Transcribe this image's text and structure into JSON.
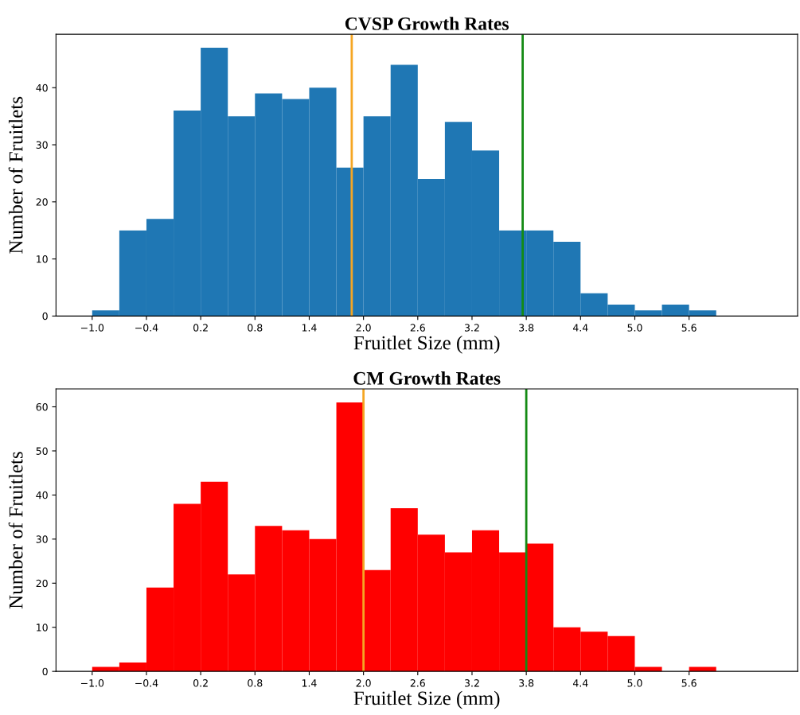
{
  "chart_data": [
    {
      "type": "histogram",
      "title": "CVSP Growth Rates",
      "xlabel": "Fruitlet Size (mm)",
      "ylabel": "Number of Fruitlets",
      "color": "#1f77b4",
      "bins": [
        -1.0,
        -0.7,
        -0.4,
        -0.1,
        0.2,
        0.5,
        0.8,
        1.1,
        1.4,
        1.7,
        2.0,
        2.3,
        2.6,
        2.9,
        3.2,
        3.5,
        3.8,
        4.1,
        4.4,
        4.7,
        5.0,
        5.3,
        5.6,
        5.9
      ],
      "values": [
        1,
        15,
        17,
        36,
        47,
        35,
        39,
        38,
        40,
        26,
        35,
        44,
        24,
        34,
        29,
        15,
        15,
        13,
        4,
        2,
        1,
        2,
        1
      ],
      "xlim": [
        -1.4,
        6.8
      ],
      "xticks": [
        {
          "value": -1.0,
          "label": "−1.0"
        },
        {
          "value": -0.4,
          "label": "−0.4"
        },
        0.2,
        0.8,
        1.4,
        {
          "value": 2.0,
          "label": "2.0"
        },
        2.6,
        3.2,
        3.8,
        4.4,
        {
          "value": 5.0,
          "label": "5.0"
        },
        5.6
      ],
      "ylim": [
        0,
        49.35
      ],
      "yticks": [
        0,
        10,
        20,
        30,
        40
      ],
      "grid": false,
      "ref_lines": [
        {
          "axis": "x",
          "value": 1.87,
          "color": "#f5a623"
        },
        {
          "axis": "x",
          "value": 3.76,
          "color": "#138a13"
        }
      ]
    },
    {
      "type": "histogram",
      "title": "CM Growth Rates",
      "xlabel": "Fruitlet Size (mm)",
      "ylabel": "Number of Fruitlets",
      "color": "#ff0000",
      "bins": [
        -1.0,
        -0.7,
        -0.4,
        -0.1,
        0.2,
        0.5,
        0.8,
        1.1,
        1.4,
        1.7,
        2.0,
        2.3,
        2.6,
        2.9,
        3.2,
        3.5,
        3.8,
        4.1,
        4.4,
        4.7,
        5.0,
        5.3,
        5.6,
        5.9
      ],
      "values": [
        1,
        2,
        19,
        38,
        43,
        22,
        33,
        32,
        30,
        61,
        23,
        37,
        31,
        27,
        32,
        27,
        29,
        10,
        9,
        8,
        1,
        0,
        1
      ],
      "xlim": [
        -1.4,
        6.8
      ],
      "xticks": [
        {
          "value": -1.0,
          "label": "−1.0"
        },
        {
          "value": -0.4,
          "label": "−0.4"
        },
        0.2,
        0.8,
        1.4,
        {
          "value": 2.0,
          "label": "2.0"
        },
        2.6,
        3.2,
        3.8,
        4.4,
        {
          "value": 5.0,
          "label": "5.0"
        },
        5.6
      ],
      "ylim": [
        0,
        64.05
      ],
      "yticks": [
        0,
        10,
        20,
        30,
        40,
        50,
        60
      ],
      "grid": false,
      "ref_lines": [
        {
          "axis": "x",
          "value": 2.0,
          "color": "#f5a623"
        },
        {
          "axis": "x",
          "value": 3.8,
          "color": "#138a13"
        }
      ]
    }
  ]
}
